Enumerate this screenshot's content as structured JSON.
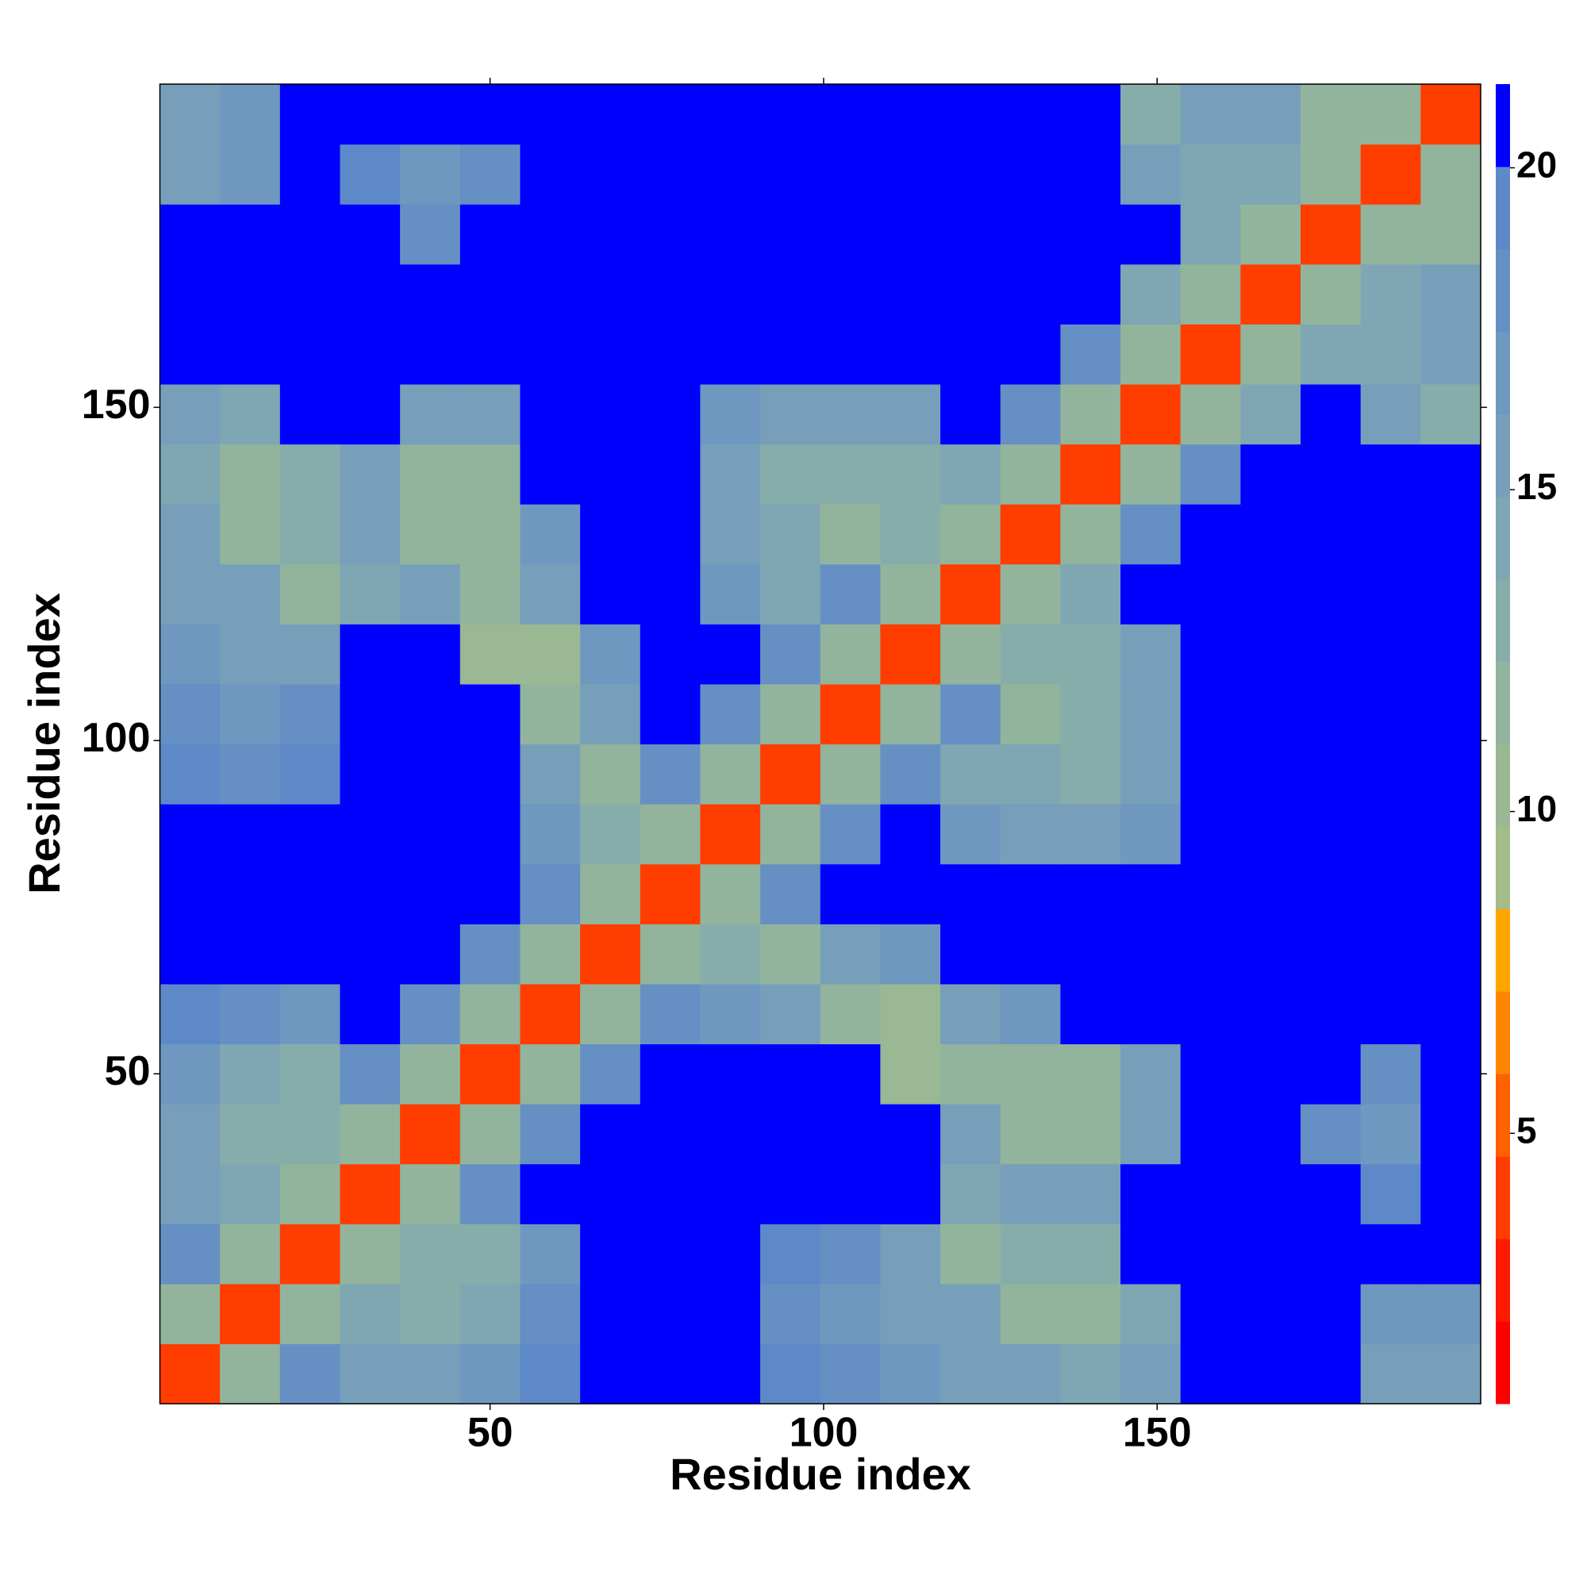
{
  "chart_data": {
    "type": "heatmap",
    "x_label": "Residue index",
    "y_label": "Residue index",
    "x": [
      5,
      14,
      23,
      32,
      41,
      50,
      59,
      68,
      77,
      86,
      95,
      104,
      113,
      122,
      131,
      140,
      149,
      158,
      167,
      176,
      185,
      194
    ],
    "y": [
      5,
      14,
      23,
      32,
      41,
      50,
      59,
      68,
      77,
      86,
      95,
      104,
      113,
      122,
      131,
      140,
      149,
      158,
      167,
      176,
      185,
      194
    ],
    "xlim": [
      0.5,
      198.5
    ],
    "ylim": [
      0.5,
      198.5
    ],
    "xticks": [
      50,
      100,
      150
    ],
    "yticks": [
      50,
      100,
      150
    ],
    "clim": [
      0.8,
      21.3
    ],
    "colorbar_ticks": [
      5,
      10,
      15,
      20
    ],
    "colormap": [
      "#ff0000",
      "#ff1a00",
      "#ff3d00",
      "#ff6000",
      "#ff8400",
      "#ffa500",
      "#a3bc8a",
      "#9ab893",
      "#92b49c",
      "#87adab",
      "#7fa6b3",
      "#779fba",
      "#6f98c0",
      "#6690c4",
      "#5e89c8",
      "#0000ff"
    ],
    "z": [
      [
        4,
        12,
        18,
        16,
        15,
        17,
        19,
        22,
        22,
        22,
        19,
        18,
        17,
        16,
        15,
        14,
        15,
        22,
        22,
        22,
        16,
        15
      ],
      [
        12,
        4,
        12,
        14,
        13,
        14,
        18,
        22,
        22,
        22,
        18,
        17,
        15,
        15,
        12,
        12,
        14,
        22,
        22,
        22,
        17,
        17
      ],
      [
        18,
        12,
        4,
        12,
        13,
        13,
        17,
        22,
        22,
        22,
        19,
        18,
        16,
        12,
        13,
        13,
        22,
        22,
        22,
        22,
        22,
        22
      ],
      [
        16,
        14,
        12,
        4,
        12,
        18,
        22,
        22,
        22,
        22,
        22,
        22,
        22,
        14,
        16,
        15,
        22,
        22,
        22,
        22,
        19,
        22
      ],
      [
        15,
        13,
        13,
        12,
        4,
        12,
        18,
        22,
        22,
        22,
        22,
        22,
        22,
        15,
        12,
        12,
        15,
        22,
        22,
        18,
        17,
        22
      ],
      [
        17,
        14,
        13,
        18,
        12,
        4,
        12,
        18,
        22,
        22,
        22,
        22,
        11,
        12,
        12,
        12,
        15,
        22,
        22,
        22,
        18,
        22
      ],
      [
        19,
        18,
        17,
        22,
        18,
        12,
        4,
        12,
        18,
        17,
        15,
        12,
        11,
        15,
        17,
        22,
        22,
        22,
        22,
        22,
        22,
        22
      ],
      [
        22,
        22,
        22,
        22,
        22,
        18,
        12,
        4,
        12,
        13,
        12,
        15,
        17,
        22,
        22,
        22,
        22,
        22,
        22,
        22,
        22,
        22
      ],
      [
        22,
        22,
        22,
        22,
        22,
        22,
        18,
        12,
        4,
        12,
        18,
        22,
        22,
        22,
        22,
        22,
        22,
        22,
        22,
        22,
        22,
        22
      ],
      [
        22,
        22,
        22,
        22,
        22,
        22,
        17,
        13,
        12,
        4,
        12,
        18,
        22,
        17,
        15,
        16,
        17,
        22,
        22,
        22,
        22,
        22
      ],
      [
        19,
        18,
        19,
        22,
        22,
        22,
        15,
        12,
        18,
        12,
        4,
        12,
        18,
        14,
        14,
        13,
        15,
        22,
        22,
        22,
        22,
        22
      ],
      [
        18,
        17,
        18,
        22,
        22,
        22,
        12,
        15,
        22,
        18,
        12,
        4,
        12,
        18,
        12,
        13,
        16,
        22,
        22,
        22,
        22,
        22
      ],
      [
        17,
        15,
        16,
        22,
        22,
        11,
        11,
        17,
        22,
        22,
        18,
        12,
        4,
        12,
        13,
        13,
        15,
        22,
        22,
        22,
        22,
        22
      ],
      [
        16,
        15,
        12,
        14,
        15,
        12,
        15,
        22,
        22,
        17,
        14,
        18,
        12,
        4,
        12,
        14,
        22,
        22,
        22,
        22,
        22,
        22
      ],
      [
        15,
        12,
        13,
        16,
        12,
        12,
        17,
        22,
        22,
        15,
        14,
        12,
        13,
        12,
        4,
        12,
        18,
        22,
        22,
        22,
        22,
        22
      ],
      [
        14,
        12,
        13,
        15,
        12,
        12,
        22,
        22,
        22,
        16,
        13,
        13,
        13,
        14,
        12,
        4,
        12,
        18,
        22,
        22,
        22,
        22
      ],
      [
        15,
        14,
        22,
        22,
        15,
        15,
        22,
        22,
        22,
        17,
        15,
        16,
        15,
        22,
        18,
        12,
        4,
        12,
        14,
        22,
        16,
        13
      ],
      [
        22,
        22,
        22,
        22,
        22,
        22,
        22,
        22,
        22,
        22,
        22,
        22,
        22,
        22,
        22,
        18,
        12,
        4,
        12,
        14,
        14,
        15
      ],
      [
        22,
        22,
        22,
        22,
        22,
        22,
        22,
        22,
        22,
        22,
        22,
        22,
        22,
        22,
        22,
        22,
        14,
        12,
        4,
        12,
        14,
        15
      ],
      [
        22,
        22,
        22,
        22,
        18,
        22,
        22,
        22,
        22,
        22,
        22,
        22,
        22,
        22,
        22,
        22,
        22,
        14,
        12,
        4,
        12,
        12
      ],
      [
        16,
        17,
        22,
        19,
        17,
        18,
        22,
        22,
        22,
        22,
        22,
        22,
        22,
        22,
        22,
        22,
        16,
        14,
        14,
        12,
        4,
        12
      ],
      [
        15,
        17,
        22,
        22,
        22,
        22,
        22,
        22,
        22,
        22,
        22,
        22,
        22,
        22,
        22,
        22,
        13,
        15,
        15,
        12,
        12,
        4
      ]
    ]
  }
}
